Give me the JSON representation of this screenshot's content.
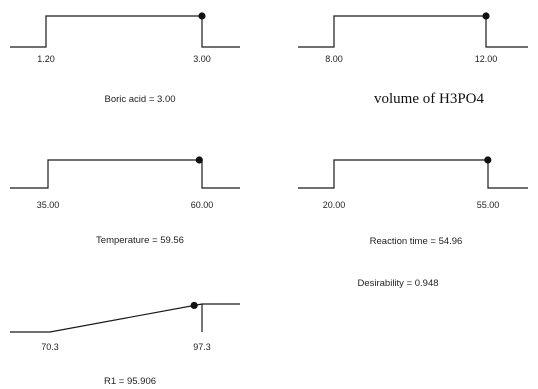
{
  "chart_data": [
    {
      "type": "line",
      "x_ticks": [
        "1.20",
        "3.00"
      ],
      "x_range": [
        1.2,
        3.0
      ],
      "current_value": 3.0,
      "desirability_shape": "box",
      "caption": "Boric acid = 3.00",
      "caption_style": "sans"
    },
    {
      "type": "line",
      "x_ticks": [
        "8.00",
        "12.00"
      ],
      "x_range": [
        8.0,
        12.0
      ],
      "current_value": 12.0,
      "desirability_shape": "box",
      "caption": "volume of H3PO4",
      "caption_style": "serif"
    },
    {
      "type": "line",
      "x_ticks": [
        "35.00",
        "60.00"
      ],
      "x_range": [
        35.0,
        60.0
      ],
      "current_value": 59.56,
      "desirability_shape": "box",
      "caption": "Temperature = 59.56",
      "caption_style": "sans"
    },
    {
      "type": "line",
      "x_ticks": [
        "20.00",
        "55.00"
      ],
      "x_range": [
        20.0,
        55.0
      ],
      "current_value": 54.96,
      "desirability_shape": "box",
      "caption": "Reaction time = 54.96",
      "caption_style": "sans"
    },
    {
      "type": "line",
      "x_ticks": [
        "70.3",
        "97.3"
      ],
      "x_range": [
        70.3,
        97.3
      ],
      "current_value": 95.906,
      "desirability_shape": "ramp",
      "caption": "R1 = 95.906",
      "caption_style": "sans"
    }
  ],
  "desirability": {
    "text": "Desirability = 0.948"
  }
}
